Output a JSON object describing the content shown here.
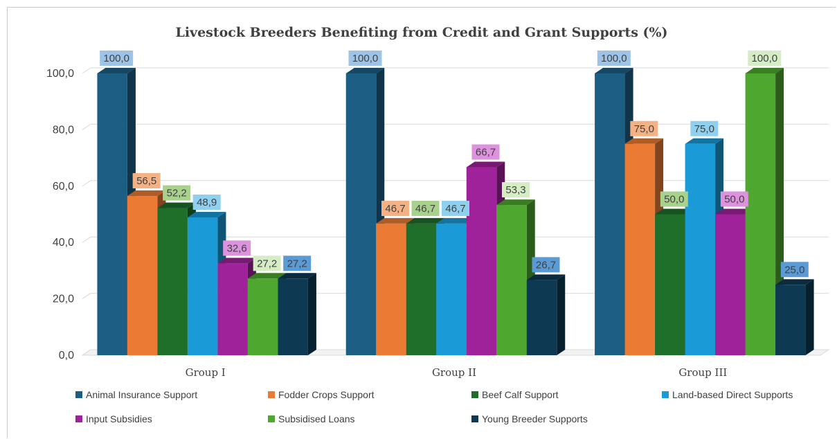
{
  "chart_data": {
    "type": "bar",
    "title": "Livestock Breeders  Benefiting from Credit and Grant Supports (%)",
    "categories": [
      "Group I",
      "Group II",
      "Group III"
    ],
    "ylim": [
      0,
      100
    ],
    "yticks": [
      "0,0",
      "20,0",
      "40,0",
      "60,0",
      "80,0",
      "100,0"
    ],
    "grid": true,
    "legend_position": "bottom",
    "series": [
      {
        "name": "Animal Insurance Support",
        "values": [
          100.0,
          100.0,
          100.0
        ],
        "labels": [
          "100,0",
          "100,0",
          "100,0"
        ],
        "color": "#1d5e84",
        "label_bg": "#9dc3e6"
      },
      {
        "name": "Fodder Crops Support",
        "values": [
          56.5,
          46.7,
          75.0
        ],
        "labels": [
          "56,5",
          "46,7",
          "75,0"
        ],
        "color": "#eb7b34",
        "label_bg": "#f4b183"
      },
      {
        "name": "Beef Calf Support",
        "values": [
          52.2,
          46.7,
          50.0
        ],
        "labels": [
          "52,2",
          "46,7",
          "50,0"
        ],
        "color": "#1f6e2a",
        "label_bg": "#a9d18e"
      },
      {
        "name": "Land-based Direct Supports",
        "values": [
          48.9,
          46.7,
          75.0
        ],
        "labels": [
          "48,9",
          "46,7",
          "75,0"
        ],
        "color": "#1a9ad6",
        "label_bg": "#8fd0ef"
      },
      {
        "name": "Input Subsidies",
        "values": [
          32.6,
          66.7,
          50.0
        ],
        "labels": [
          "32,6",
          "66,7",
          "50,0"
        ],
        "color": "#a0229b",
        "label_bg": "#dc92dc"
      },
      {
        "name": "Subsidised Loans",
        "values": [
          27.2,
          53.3,
          100.0
        ],
        "labels": [
          "27,2",
          "53,3",
          "100,0"
        ],
        "color": "#4ea72e",
        "label_bg": "#d5ecc4"
      },
      {
        "name": "Young Breeder Supports",
        "values": [
          27.2,
          26.7,
          25.0
        ],
        "labels": [
          "27,2",
          "26,7",
          "25,0"
        ],
        "color": "#0d3a52",
        "label_bg": "#5b9bd5"
      }
    ]
  }
}
